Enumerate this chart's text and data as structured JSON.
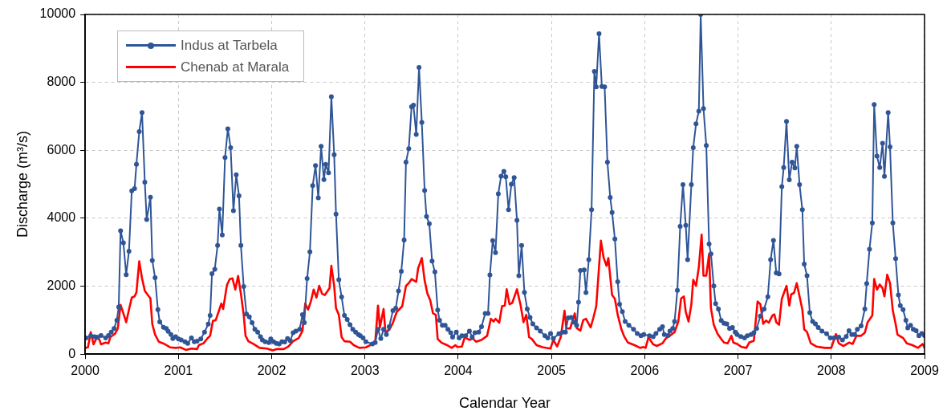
{
  "chart_data": {
    "type": "line",
    "xlabel": "Calendar Year",
    "ylabel": "Discharge (m³/s)",
    "xlim": [
      2000,
      2009
    ],
    "xticks": [
      2000,
      2001,
      2002,
      2003,
      2004,
      2005,
      2006,
      2007,
      2008,
      2009
    ],
    "ylim": [
      0,
      10000
    ],
    "yticks": [
      0,
      2000,
      4000,
      6000,
      8000,
      10000
    ],
    "grid": true,
    "legend": "top left",
    "series": [
      {
        "name": "Indus at Tarbela",
        "color": "#2f5597",
        "marker": "circle",
        "x": [
          2000.01,
          2000.06,
          2000.1,
          2000.13,
          2000.17,
          2000.22,
          2000.25,
          2000.28,
          2000.31,
          2000.34,
          2000.36,
          2000.38,
          2000.41,
          2000.44,
          2000.47,
          2000.5,
          2000.53,
          2000.55,
          2000.58,
          2000.61,
          2000.64,
          2000.66,
          2000.7,
          2000.72,
          2000.75,
          2000.78,
          2000.8,
          2000.84,
          2000.87,
          2000.89,
          2000.92,
          2000.94,
          2000.97,
          2001.0,
          2001.03,
          2001.07,
          2001.1,
          2001.14,
          2001.17,
          2001.2,
          2001.24,
          2001.28,
          2001.32,
          2001.34,
          2001.36,
          2001.39,
          2001.42,
          2001.44,
          2001.47,
          2001.5,
          2001.53,
          2001.56,
          2001.59,
          2001.62,
          2001.65,
          2001.67,
          2001.7,
          2001.73,
          2001.76,
          2001.79,
          2001.82,
          2001.85,
          2001.88,
          2001.9,
          2001.93,
          2001.97,
          2001.99,
          2002.02,
          2002.05,
          2002.08,
          2002.11,
          2002.14,
          2002.17,
          2002.2,
          2002.23,
          2002.26,
          2002.3,
          2002.33,
          2002.35,
          2002.38,
          2002.41,
          2002.44,
          2002.47,
          2002.5,
          2002.53,
          2002.56,
          2002.58,
          2002.61,
          2002.64,
          2002.67,
          2002.69,
          2002.72,
          2002.75,
          2002.78,
          2002.81,
          2002.84,
          2002.87,
          2002.9,
          2002.93,
          2002.95,
          2002.98,
          2003.01,
          2003.08,
          2003.11,
          2003.14,
          2003.17,
          2003.2,
          2003.23,
          2003.26,
          2003.3,
          2003.33,
          2003.36,
          2003.39,
          2003.42,
          2003.44,
          2003.47,
          2003.5,
          2003.52,
          2003.55,
          2003.58,
          2003.61,
          2003.64,
          2003.66,
          2003.69,
          2003.72,
          2003.75,
          2003.78,
          2003.8,
          2003.83,
          2003.86,
          2003.89,
          2003.92,
          2003.94,
          2003.98,
          2004.01,
          2004.04,
          2004.08,
          2004.12,
          2004.15,
          2004.18,
          2004.22,
          2004.25,
          2004.29,
          2004.32,
          2004.34,
          2004.37,
          2004.4,
          2004.43,
          2004.46,
          2004.49,
          2004.51,
          2004.54,
          2004.57,
          2004.6,
          2004.63,
          2004.65,
          2004.68,
          2004.71,
          2004.74,
          2004.77,
          2004.8,
          2004.84,
          2004.88,
          2004.93,
          2004.96,
          2004.99,
          2005.02,
          2005.08,
          2005.12,
          2005.15,
          2005.18,
          2005.21,
          2005.24,
          2005.27,
          2005.29,
          2005.31,
          2005.35,
          2005.37,
          2005.4,
          2005.43,
          2005.46,
          2005.48,
          2005.51,
          2005.54,
          2005.57,
          2005.6,
          2005.63,
          2005.65,
          2005.68,
          2005.71,
          2005.73,
          2005.76,
          2005.79,
          2005.83,
          2005.88,
          2005.92,
          2005.96,
          2005.99,
          2006.05,
          2006.09,
          2006.12,
          2006.16,
          2006.19,
          2006.21,
          2006.25,
          2006.27,
          2006.3,
          2006.32,
          2006.35,
          2006.38,
          2006.41,
          2006.44,
          2006.46,
          2006.5,
          2006.52,
          2006.55,
          2006.58,
          2006.6,
          2006.63,
          2006.66,
          2006.69,
          2006.71,
          2006.74,
          2006.76,
          2006.79,
          2006.82,
          2006.85,
          2006.88,
          2006.91,
          2006.94,
          2006.97,
          2006.99,
          2007.03,
          2007.07,
          2007.1,
          2007.14,
          2007.17,
          2007.2,
          2007.24,
          2007.28,
          2007.32,
          2007.35,
          2007.38,
          2007.41,
          2007.44,
          2007.47,
          2007.49,
          2007.52,
          2007.55,
          2007.58,
          2007.61,
          2007.63,
          2007.66,
          2007.69,
          2007.71,
          2007.74,
          2007.77,
          2007.8,
          2007.83,
          2007.86,
          2007.9,
          2007.95,
          2007.99,
          2008.03,
          2008.08,
          2008.12,
          2008.16,
          2008.19,
          2008.22,
          2008.25,
          2008.28,
          2008.32,
          2008.36,
          2008.38,
          2008.41,
          2008.44,
          2008.46,
          2008.49,
          2008.52,
          2008.55,
          2008.57,
          2008.61,
          2008.63,
          2008.66,
          2008.69,
          2008.72,
          2008.74,
          2008.77,
          2008.8,
          2008.82,
          2008.85,
          2008.88,
          2008.91,
          2008.94,
          2008.97,
          2009.0
        ],
        "values": [
          475,
          540,
          515,
          500,
          550,
          475,
          550,
          650,
          755,
          1000,
          1390,
          3630,
          3280,
          2340,
          3030,
          4810,
          4870,
          5590,
          6550,
          7110,
          5060,
          3960,
          4620,
          2760,
          2250,
          1310,
          950,
          790,
          755,
          670,
          575,
          460,
          515,
          445,
          420,
          365,
          320,
          475,
          365,
          380,
          445,
          650,
          885,
          1140,
          2365,
          2500,
          3200,
          4270,
          3510,
          5790,
          6630,
          6080,
          4220,
          5280,
          4660,
          3200,
          1990,
          1180,
          1100,
          925,
          730,
          650,
          515,
          420,
          365,
          340,
          445,
          365,
          320,
          300,
          365,
          360,
          460,
          395,
          630,
          680,
          730,
          1160,
          925,
          2225,
          3010,
          4960,
          5550,
          4600,
          6120,
          5140,
          5590,
          5340,
          7580,
          5870,
          4120,
          2190,
          1680,
          1140,
          1020,
          865,
          730,
          650,
          575,
          540,
          475,
          365,
          300,
          340,
          730,
          460,
          730,
          575,
          810,
          1280,
          1350,
          1860,
          2440,
          3360,
          5650,
          6050,
          7280,
          7330,
          6470,
          8440,
          6820,
          4820,
          4050,
          3840,
          2740,
          2420,
          1300,
          1000,
          850,
          850,
          730,
          630,
          500,
          650,
          475,
          540,
          540,
          680,
          500,
          630,
          650,
          810,
          1200,
          1200,
          2330,
          3340,
          2990,
          4720,
          5240,
          5380,
          5220,
          4250,
          5000,
          5200,
          3940,
          2310,
          3200,
          1820,
          1330,
          1080,
          890,
          770,
          680,
          540,
          475,
          610,
          460,
          600,
          650,
          650,
          1070,
          1080,
          940,
          850,
          1530,
          2460,
          2480,
          1810,
          2780,
          4250,
          8320,
          7870,
          9430,
          7880,
          7870,
          5650,
          4610,
          4170,
          3390,
          2130,
          1470,
          1250,
          960,
          850,
          730,
          610,
          540,
          580,
          540,
          515,
          610,
          730,
          810,
          575,
          550,
          680,
          755,
          960,
          1875,
          3760,
          4990,
          3790,
          2780,
          4990,
          6080,
          6780,
          7150,
          10000,
          7230,
          6140,
          3240,
          2950,
          2010,
          1490,
          1330,
          990,
          910,
          890,
          755,
          785,
          650,
          575,
          520,
          475,
          540,
          575,
          630,
          755,
          1120,
          1330,
          1690,
          2780,
          3350,
          2390,
          2360,
          4930,
          5490,
          6850,
          5130,
          5650,
          5480,
          6120,
          4990,
          4250,
          2650,
          2310,
          1220,
          960,
          890,
          785,
          680,
          600,
          475,
          475,
          500,
          420,
          520,
          690,
          575,
          575,
          730,
          830,
          1330,
          2080,
          3090,
          3860,
          7350,
          5830,
          5490,
          6210,
          5230,
          7110,
          6100,
          3860,
          2810,
          1740,
          1430,
          1310,
          1000,
          770,
          850,
          730,
          690,
          540,
          610,
          550
        ]
      },
      {
        "name": "Chenab at Marala",
        "color": "#ff0000",
        "marker": "none",
        "x": [
          2000.0,
          2000.03,
          2000.06,
          2000.09,
          2000.12,
          2000.15,
          2000.17,
          2000.22,
          2000.25,
          2000.27,
          2000.32,
          2000.35,
          2000.38,
          2000.41,
          2000.44,
          2000.47,
          2000.5,
          2000.53,
          2000.55,
          2000.58,
          2000.61,
          2000.64,
          2000.7,
          2000.72,
          2000.75,
          2000.79,
          2000.85,
          2000.91,
          2000.97,
          2001.02,
          2001.08,
          2001.14,
          2001.2,
          2001.22,
          2001.27,
          2001.31,
          2001.34,
          2001.37,
          2001.4,
          2001.43,
          2001.46,
          2001.48,
          2001.52,
          2001.55,
          2001.58,
          2001.61,
          2001.64,
          2001.67,
          2001.7,
          2001.72,
          2001.75,
          2001.81,
          2001.87,
          2001.95,
          2002.01,
          2002.06,
          2002.13,
          2002.18,
          2002.23,
          2002.29,
          2002.33,
          2002.36,
          2002.39,
          2002.42,
          2002.45,
          2002.48,
          2002.51,
          2002.54,
          2002.57,
          2002.59,
          2002.62,
          2002.64,
          2002.67,
          2002.69,
          2002.72,
          2002.75,
          2002.78,
          2002.84,
          2002.88,
          2002.94,
          2003.01,
          2003.11,
          2003.14,
          2003.16,
          2003.2,
          2003.22,
          2003.26,
          2003.3,
          2003.34,
          2003.4,
          2003.44,
          2003.47,
          2003.5,
          2003.55,
          2003.57,
          2003.61,
          2003.64,
          2003.67,
          2003.7,
          2003.73,
          2003.76,
          2003.78,
          2003.82,
          2003.88,
          2003.93,
          2003.97,
          2003.99,
          2004.04,
          2004.07,
          2004.12,
          2004.16,
          2004.19,
          2004.25,
          2004.31,
          2004.35,
          2004.38,
          2004.4,
          2004.44,
          2004.47,
          2004.5,
          2004.52,
          2004.55,
          2004.58,
          2004.63,
          2004.67,
          2004.7,
          2004.73,
          2004.76,
          2004.79,
          2004.84,
          2004.91,
          2004.99,
          2005.02,
          2005.06,
          2005.1,
          2005.14,
          2005.16,
          2005.2,
          2005.25,
          2005.27,
          2005.31,
          2005.34,
          2005.37,
          2005.42,
          2005.45,
          2005.48,
          2005.53,
          2005.56,
          2005.59,
          2005.61,
          2005.65,
          2005.68,
          2005.71,
          2005.75,
          2005.78,
          2005.82,
          2005.89,
          2005.95,
          2005.99,
          2006.01,
          2006.04,
          2006.09,
          2006.13,
          2006.19,
          2006.23,
          2006.27,
          2006.32,
          2006.36,
          2006.39,
          2006.42,
          2006.44,
          2006.47,
          2006.5,
          2006.52,
          2006.55,
          2006.58,
          2006.61,
          2006.63,
          2006.66,
          2006.69,
          2006.71,
          2006.74,
          2006.78,
          2006.82,
          2006.85,
          2006.89,
          2006.93,
          2006.95,
          2006.99,
          2007.04,
          2007.09,
          2007.12,
          2007.17,
          2007.21,
          2007.24,
          2007.27,
          2007.3,
          2007.33,
          2007.37,
          2007.39,
          2007.41,
          2007.44,
          2007.47,
          2007.52,
          2007.55,
          2007.57,
          2007.6,
          2007.63,
          2007.66,
          2007.69,
          2007.71,
          2007.74,
          2007.78,
          2007.84,
          2007.93,
          2008.0,
          2008.05,
          2008.08,
          2008.13,
          2008.19,
          2008.23,
          2008.27,
          2008.32,
          2008.36,
          2008.39,
          2008.44,
          2008.46,
          2008.49,
          2008.52,
          2008.55,
          2008.57,
          2008.6,
          2008.63,
          2008.66,
          2008.69,
          2008.71,
          2008.77,
          2008.81,
          2008.87,
          2008.93,
          2008.98,
          2009.0
        ],
        "values": [
          185,
          200,
          650,
          290,
          460,
          445,
          290,
          340,
          320,
          500,
          600,
          755,
          1450,
          1200,
          940,
          1310,
          1665,
          1700,
          1820,
          2730,
          2230,
          1860,
          1640,
          885,
          575,
          365,
          300,
          200,
          185,
          200,
          125,
          165,
          150,
          265,
          320,
          460,
          540,
          980,
          1000,
          1240,
          1490,
          1330,
          2030,
          2210,
          2230,
          1900,
          2300,
          1780,
          1160,
          540,
          380,
          290,
          185,
          165,
          110,
          150,
          150,
          225,
          380,
          475,
          680,
          1490,
          1310,
          1550,
          1900,
          1665,
          2010,
          1780,
          1740,
          1820,
          1940,
          2600,
          2010,
          1350,
          1160,
          500,
          380,
          365,
          265,
          185,
          200,
          340,
          1430,
          785,
          1330,
          650,
          710,
          925,
          1240,
          1410,
          2010,
          2090,
          2210,
          2130,
          2520,
          2830,
          2170,
          1780,
          1590,
          1200,
          1160,
          445,
          340,
          265,
          185,
          265,
          210,
          225,
          500,
          420,
          460,
          365,
          420,
          540,
          1040,
          960,
          1040,
          925,
          1410,
          1430,
          1910,
          1470,
          1510,
          1910,
          1430,
          940,
          1160,
          500,
          445,
          265,
          200,
          165,
          420,
          225,
          500,
          1280,
          755,
          755,
          1200,
          770,
          690,
          1000,
          1040,
          785,
          1080,
          1410,
          3340,
          2830,
          2600,
          2830,
          1740,
          1630,
          1160,
          730,
          520,
          340,
          265,
          185,
          210,
          185,
          500,
          290,
          240,
          320,
          475,
          540,
          650,
          960,
          1640,
          1700,
          1240,
          960,
          1470,
          2190,
          2010,
          2560,
          3520,
          2310,
          2310,
          2950,
          1350,
          865,
          600,
          445,
          340,
          320,
          540,
          340,
          300,
          210,
          185,
          340,
          395,
          1550,
          1470,
          890,
          990,
          925,
          1140,
          1170,
          940,
          865,
          1630,
          2010,
          1430,
          1760,
          1800,
          2090,
          1700,
          1310,
          730,
          650,
          320,
          225,
          185,
          185,
          590,
          320,
          240,
          340,
          300,
          540,
          540,
          630,
          940,
          1140,
          2210,
          1900,
          2050,
          1940,
          1700,
          2340,
          2090,
          1280,
          890,
          575,
          475,
          320,
          265,
          185,
          300,
          185
        ]
      }
    ]
  }
}
